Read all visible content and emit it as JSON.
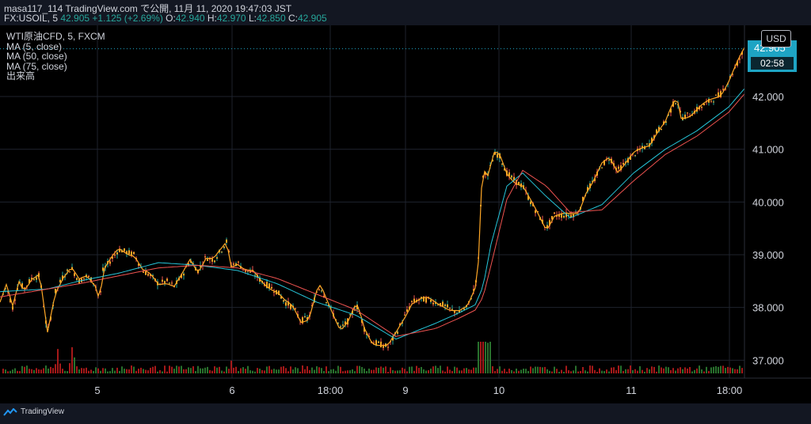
{
  "header": {
    "line1": "masa117_114 TradingView.com で公開, 11月 11, 2020 19:47:03 JST",
    "symbol": "FX:USOIL, 5",
    "last": "42.905",
    "change": "+1.125 (+2.69%)",
    "o_label": "O:",
    "o": "42.940",
    "h_label": "H:",
    "h": "42.970",
    "l_label": "L:",
    "l": "42.850",
    "c_label": "C:",
    "c": "42.905"
  },
  "legend": {
    "title": "WTI原油CFD, 5, FXCM",
    "ma5": "MA (5, close)",
    "ma50": "MA (50, close)",
    "ma75": "MA (75, close)",
    "volume": "出来高"
  },
  "currency": "USD",
  "price_tag": {
    "price": "42.905",
    "countdown": "02:58"
  },
  "brand": "TradingView",
  "colors": {
    "background": "#000000",
    "grid": "#1e222d",
    "up": "#26a69a",
    "down": "#ef5350",
    "candle_body": "#f6a623",
    "ma5": "#26c6da",
    "ma50": "#ef5350",
    "ma75": "#ffa726",
    "price_tag": "#1ea4c4"
  },
  "chart_data": {
    "type": "line",
    "y_ticks": [
      "37.000",
      "38.000",
      "39.000",
      "40.000",
      "41.000",
      "42.000"
    ],
    "x_ticks": [
      "5",
      "6",
      "18:00",
      "9",
      "10",
      "11",
      "18:00"
    ],
    "ylim": [
      36.75,
      43.2
    ],
    "series": [
      {
        "name": "WTI原油CFD",
        "x": [
          0,
          8,
          16,
          24,
          30,
          40,
          50,
          60,
          70,
          80,
          90,
          100,
          110,
          120,
          126,
          130,
          140,
          150,
          160,
          170,
          180,
          190,
          200,
          210,
          220,
          230,
          240,
          250,
          260,
          270,
          280,
          286,
          292,
          300,
          310,
          320,
          330,
          340,
          350,
          360,
          370,
          380,
          390,
          400,
          405,
          410,
          420,
          430,
          440,
          450,
          455,
          460,
          470,
          480,
          490,
          500,
          510,
          520,
          530,
          540,
          550,
          560,
          570,
          580,
          590,
          600,
          604,
          608,
          612,
          616,
          620,
          624,
          630,
          640,
          650,
          660,
          670,
          680,
          690,
          700,
          710,
          720,
          730,
          740,
          750,
          760,
          770,
          780,
          790,
          800,
          810,
          820,
          830,
          840,
          850,
          855,
          860,
          870,
          880,
          890,
          900,
          910,
          920,
          930,
          940
        ],
        "values": [
          38.1,
          38.4,
          38.0,
          38.5,
          38.35,
          38.55,
          38.6,
          37.5,
          38.3,
          38.6,
          38.75,
          38.5,
          38.6,
          38.45,
          38.15,
          38.7,
          38.9,
          39.1,
          39.05,
          39.0,
          38.7,
          38.6,
          38.45,
          38.5,
          38.4,
          38.6,
          38.9,
          38.7,
          38.95,
          38.9,
          39.1,
          39.25,
          38.8,
          38.85,
          38.7,
          38.65,
          38.5,
          38.4,
          38.3,
          38.1,
          38.0,
          37.75,
          37.8,
          38.3,
          38.4,
          38.2,
          37.9,
          37.6,
          37.75,
          38.05,
          37.85,
          37.6,
          37.35,
          37.3,
          37.25,
          37.5,
          37.8,
          38.1,
          38.15,
          38.15,
          38.1,
          38.05,
          37.95,
          37.9,
          38.0,
          38.4,
          38.9,
          40.3,
          40.6,
          40.5,
          40.7,
          40.9,
          40.9,
          40.55,
          40.4,
          40.3,
          40.0,
          39.75,
          39.5,
          39.75,
          39.75,
          39.75,
          39.8,
          40.2,
          40.4,
          40.7,
          40.85,
          40.6,
          40.75,
          40.9,
          41.0,
          41.1,
          41.35,
          41.5,
          41.85,
          41.95,
          41.6,
          41.65,
          41.75,
          41.85,
          41.95,
          42.05,
          42.3,
          42.6,
          42.9
        ]
      },
      {
        "name": "MA (50, close)",
        "x": [
          0,
          60,
          100,
          150,
          200,
          250,
          300,
          350,
          400,
          450,
          500,
          550,
          580,
          600,
          610,
          620,
          640,
          660,
          690,
          720,
          760,
          800,
          840,
          880,
          920,
          940
        ],
        "values": [
          38.3,
          38.35,
          38.5,
          38.65,
          38.85,
          38.8,
          38.7,
          38.45,
          38.1,
          37.85,
          37.4,
          37.7,
          37.9,
          38.05,
          38.4,
          39.2,
          40.3,
          40.55,
          40.1,
          39.7,
          39.95,
          40.55,
          41.0,
          41.35,
          41.8,
          42.15
        ]
      },
      {
        "name": "MA (75, close)",
        "x": [
          0,
          60,
          100,
          150,
          200,
          250,
          300,
          350,
          400,
          450,
          500,
          550,
          580,
          600,
          610,
          620,
          640,
          660,
          690,
          720,
          760,
          800,
          840,
          880,
          920,
          940
        ],
        "values": [
          38.2,
          38.35,
          38.45,
          38.6,
          38.75,
          38.8,
          38.75,
          38.55,
          38.25,
          37.95,
          37.45,
          37.6,
          37.8,
          37.95,
          38.2,
          38.8,
          40.05,
          40.6,
          40.3,
          39.8,
          39.85,
          40.4,
          40.9,
          41.25,
          41.7,
          42.05
        ]
      }
    ],
    "volume": {
      "name": "出来高",
      "spikes": [
        [
          72,
          6
        ],
        [
          92,
          4
        ],
        [
          290,
          3
        ],
        [
          606,
          14
        ],
        [
          612,
          9
        ],
        [
          618,
          7
        ],
        [
          910,
          2
        ]
      ]
    }
  }
}
